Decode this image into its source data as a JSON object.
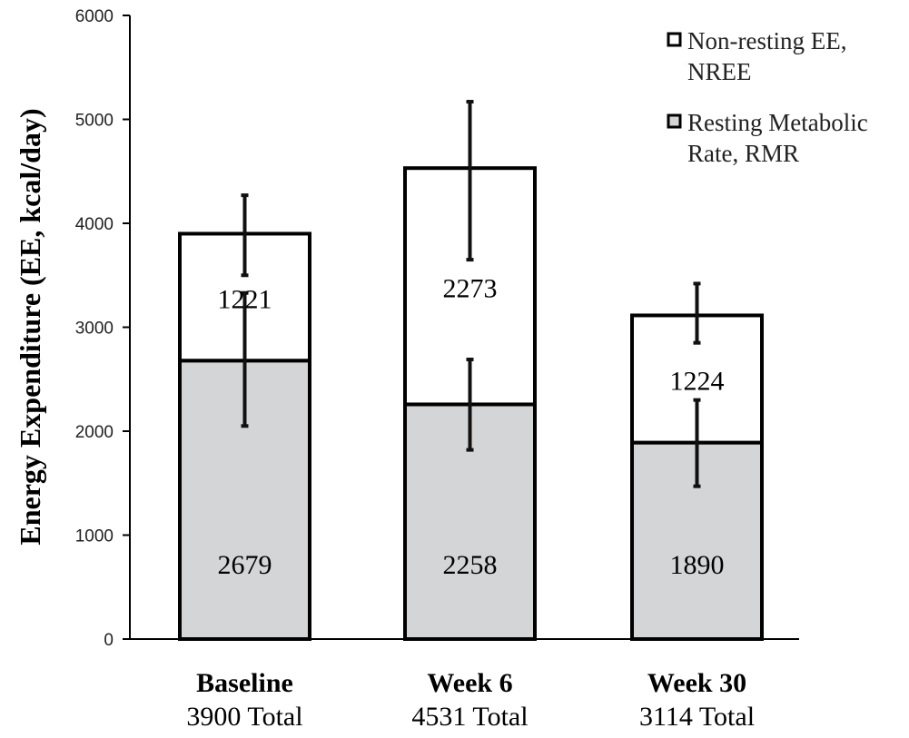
{
  "chart_data": {
    "type": "bar",
    "stacked": true,
    "title": "",
    "xlabel": "",
    "ylabel": "Energy Expenditure (EE, kcal/day)",
    "ylim": [
      0,
      6000
    ],
    "yticks": [
      0,
      1000,
      2000,
      3000,
      4000,
      5000,
      6000
    ],
    "grid": false,
    "legend_position": "top-right",
    "categories": [
      "Baseline",
      "Week 6",
      "Week 30"
    ],
    "category_totals": [
      "3900 Total",
      "4531 Total",
      "3114 Total"
    ],
    "series": [
      {
        "name": "Resting Metabolic Rate, RMR",
        "legend_lines": [
          "Resting Metabolic",
          "Rate, RMR"
        ],
        "color": "#d4d5d7",
        "values": [
          2679,
          2258,
          1890
        ],
        "labels": [
          "2679",
          "2258",
          "1890"
        ],
        "error": [
          {
            "low": 2050,
            "high": 3330
          },
          {
            "low": 1820,
            "high": 2690
          },
          {
            "low": 1470,
            "high": 2300
          }
        ]
      },
      {
        "name": "Non-resting EE, NREE",
        "legend_lines": [
          "Non-resting EE,",
          "NREE"
        ],
        "color": "#ffffff",
        "values": [
          1221,
          2273,
          1224
        ],
        "labels": [
          "1221",
          "2273",
          "1224"
        ],
        "error": [
          {
            "low": 3500,
            "high": 4270
          },
          {
            "low": 3650,
            "high": 5170
          },
          {
            "low": 2850,
            "high": 3420
          }
        ]
      }
    ]
  }
}
